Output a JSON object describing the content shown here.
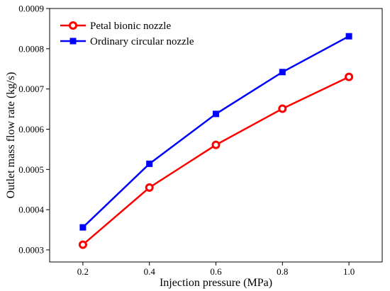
{
  "chart_data": {
    "type": "line",
    "xlabel": "Injection pressure (MPa)",
    "ylabel": "Outlet mass flow rate (kg/s)",
    "xlim": [
      0.1,
      1.1
    ],
    "ylim": [
      0.00027,
      0.0009
    ],
    "x_ticks": [
      0.2,
      0.4,
      0.6,
      0.8,
      1.0
    ],
    "x_tick_labels": [
      "0.2",
      "0.4",
      "0.6",
      "0.8",
      "1.0"
    ],
    "y_ticks": [
      0.0003,
      0.0004,
      0.0005,
      0.0006,
      0.0007,
      0.0008,
      0.0009
    ],
    "y_tick_labels": [
      "0.0003",
      "0.0004",
      "0.0005",
      "0.0006",
      "0.0007",
      "0.0008",
      "0.0009"
    ],
    "grid": false,
    "legend_position": "top-left",
    "series": [
      {
        "name": "Petal bionic nozzle",
        "color": "#ff0000",
        "marker": "circle",
        "x": [
          0.2,
          0.4,
          0.6,
          0.8,
          1.0
        ],
        "y": [
          0.000313,
          0.000455,
          0.000561,
          0.000651,
          0.00073
        ]
      },
      {
        "name": "Ordinary circular nozzle",
        "color": "#0000ff",
        "marker": "square",
        "x": [
          0.2,
          0.4,
          0.6,
          0.8,
          1.0
        ],
        "y": [
          0.000356,
          0.000514,
          0.000638,
          0.000742,
          0.000831
        ]
      }
    ]
  }
}
